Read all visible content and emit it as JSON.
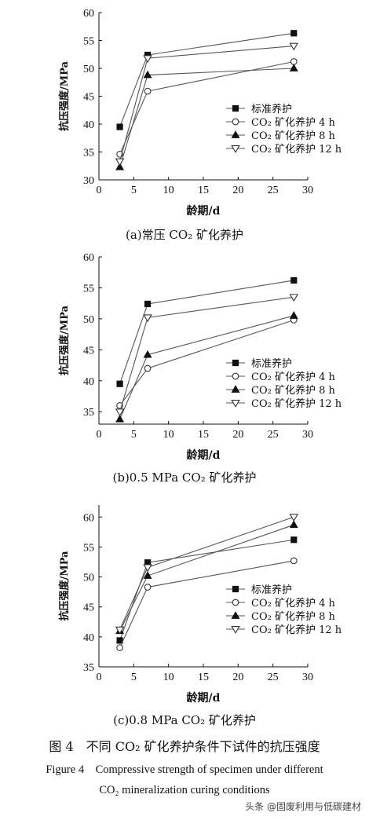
{
  "chart_data": [
    {
      "type": "line",
      "caption": "(a)常压 CO₂ 矿化养护",
      "xlabel": "龄期/d",
      "ylabel": "抗压强度/MPa",
      "xlim": [
        0,
        30
      ],
      "ylim": [
        30,
        60
      ],
      "xticks": [
        "0",
        "5",
        "10",
        "15",
        "20",
        "25",
        "30"
      ],
      "yticks": [
        "30",
        "35",
        "40",
        "45",
        "50",
        "55",
        "60"
      ],
      "legend_position": "bottom-right",
      "x": [
        3,
        7,
        28
      ],
      "series": [
        {
          "name": "标准养护",
          "marker": "square-filled",
          "values": [
            39.5,
            52.4,
            56.3
          ]
        },
        {
          "name": "CO₂ 矿化养护 4 h",
          "marker": "circle-open",
          "values": [
            34.6,
            45.9,
            51.2
          ]
        },
        {
          "name": "CO₂ 矿化养护 8 h",
          "marker": "triangle-up-filled",
          "values": [
            32.3,
            48.8,
            50.0
          ]
        },
        {
          "name": "CO₂ 矿化养护 12 h",
          "marker": "triangle-down-open",
          "values": [
            33.3,
            51.8,
            54.0
          ]
        }
      ]
    },
    {
      "type": "line",
      "caption": "(b)0.5 MPa CO₂ 矿化养护",
      "xlabel": "龄期/d",
      "ylabel": "抗压强度/MPa",
      "xlim": [
        0,
        30
      ],
      "ylim": [
        33,
        60
      ],
      "xticks": [
        "0",
        "5",
        "10",
        "15",
        "20",
        "25",
        "30"
      ],
      "yticks": [
        "35",
        "40",
        "45",
        "50",
        "55",
        "60"
      ],
      "legend_position": "bottom-right",
      "x": [
        3,
        7,
        28
      ],
      "series": [
        {
          "name": "标准养护",
          "marker": "square-filled",
          "values": [
            39.5,
            52.4,
            56.2
          ]
        },
        {
          "name": "CO₂ 矿化养护 4 h",
          "marker": "circle-open",
          "values": [
            36.0,
            42.0,
            49.8
          ]
        },
        {
          "name": "CO₂ 矿化养护 8 h",
          "marker": "triangle-up-filled",
          "values": [
            33.8,
            44.2,
            50.5
          ]
        },
        {
          "name": "CO₂ 矿化养护 12 h",
          "marker": "triangle-down-open",
          "values": [
            35.0,
            50.2,
            53.5
          ]
        }
      ]
    },
    {
      "type": "line",
      "caption": "(c)0.8 MPa CO₂ 矿化养护",
      "xlabel": "龄期/d",
      "ylabel": "抗压强度/MPa",
      "xlim": [
        0,
        30
      ],
      "ylim": [
        35,
        62
      ],
      "xticks": [
        "0",
        "5",
        "10",
        "15",
        "20",
        "25",
        "30"
      ],
      "yticks": [
        "35",
        "40",
        "45",
        "50",
        "55",
        "60"
      ],
      "legend_position": "bottom-right",
      "x": [
        3,
        7,
        28
      ],
      "series": [
        {
          "name": "标准养护",
          "marker": "square-filled",
          "values": [
            39.4,
            52.4,
            56.2
          ]
        },
        {
          "name": "CO₂ 矿化养护 4 h",
          "marker": "circle-open",
          "values": [
            38.2,
            48.3,
            52.7
          ]
        },
        {
          "name": "CO₂ 矿化养护 8 h",
          "marker": "triangle-up-filled",
          "values": [
            41.0,
            50.2,
            58.7
          ]
        },
        {
          "name": "CO₂ 矿化养护 12 h",
          "marker": "triangle-down-open",
          "values": [
            41.2,
            51.6,
            60.0
          ]
        }
      ]
    }
  ],
  "figure": {
    "title_cn": "图 4　不同 CO₂ 矿化养护条件下试件的抗压强度",
    "title_en_line1": "Figure 4　Compressive strength of specimen under different",
    "title_en_line2": "CO₂ mineralization curing conditions"
  },
  "watermark": "头条 @固废利用与低碳建材"
}
